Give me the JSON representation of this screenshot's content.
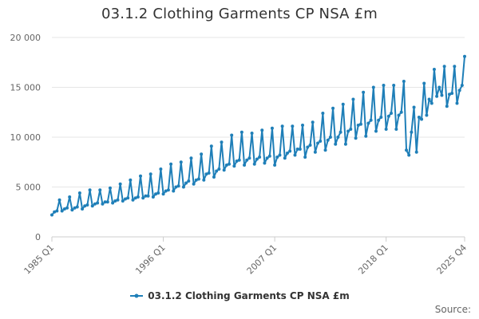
{
  "title": "03.1.2 Clothing Garments CP NSA £m",
  "source_label": "Source:",
  "colors": {
    "series": "#1f7fb8",
    "grid": "#e6e6e6",
    "axis": "#cccccc"
  },
  "chart_data": {
    "type": "line",
    "title": "03.1.2 Clothing Garments CP NSA £m",
    "xlabel": "",
    "ylabel": "",
    "ylim": [
      0,
      20000
    ],
    "yticks": [
      0,
      5000,
      10000,
      15000,
      20000
    ],
    "ytick_labels": [
      "0",
      "5 000",
      "10 000",
      "15 000",
      "20 000"
    ],
    "xtick_labels": [
      "1985 Q1",
      "1996 Q1",
      "2007 Q1",
      "2018 Q1",
      "2025 Q4"
    ],
    "xtick_index": [
      0,
      44,
      88,
      132,
      163
    ],
    "grid": true,
    "legend": "bottom",
    "x_start": "1985 Q1",
    "x_end": "2025 Q4",
    "series": [
      {
        "name": "03.1.2 Clothing Garments CP NSA £m",
        "values": [
          2200,
          2500,
          2600,
          3700,
          2600,
          2800,
          2900,
          4000,
          2700,
          2900,
          3000,
          4400,
          2800,
          3100,
          3200,
          4700,
          3100,
          3300,
          3400,
          4700,
          3300,
          3500,
          3500,
          4900,
          3400,
          3600,
          3700,
          5300,
          3600,
          3800,
          3900,
          5700,
          3700,
          3900,
          4000,
          6100,
          3900,
          4100,
          4100,
          6300,
          4000,
          4300,
          4400,
          6800,
          4300,
          4600,
          4700,
          7300,
          4600,
          5000,
          5100,
          7500,
          5000,
          5400,
          5600,
          7900,
          5300,
          5700,
          5800,
          8300,
          5700,
          6300,
          6400,
          9100,
          6000,
          6600,
          6800,
          9500,
          6700,
          7200,
          7300,
          10200,
          7100,
          7600,
          7700,
          10500,
          7200,
          7700,
          7900,
          10400,
          7300,
          7800,
          8000,
          10700,
          7400,
          7900,
          8100,
          10900,
          7200,
          8000,
          8200,
          11100,
          7900,
          8400,
          8600,
          11100,
          8200,
          8800,
          8800,
          11200,
          8000,
          9000,
          9200,
          11500,
          8500,
          9400,
          9600,
          12400,
          8700,
          9700,
          10000,
          12900,
          9300,
          10000,
          10500,
          13300,
          9300,
          10600,
          10800,
          13800,
          9900,
          11200,
          11300,
          14500,
          10100,
          11400,
          11700,
          15000,
          10600,
          11700,
          12000,
          15200,
          10800,
          12100,
          12400,
          15200,
          10800,
          12200,
          12500,
          15600,
          8700,
          8200,
          10500,
          13000,
          8500,
          12000,
          11800,
          15400,
          12200,
          13800,
          13400,
          16800,
          14100,
          15000,
          14200,
          17100,
          13100,
          14300,
          14400,
          17100,
          13400,
          14700,
          15200,
          18100
        ]
      }
    ]
  }
}
